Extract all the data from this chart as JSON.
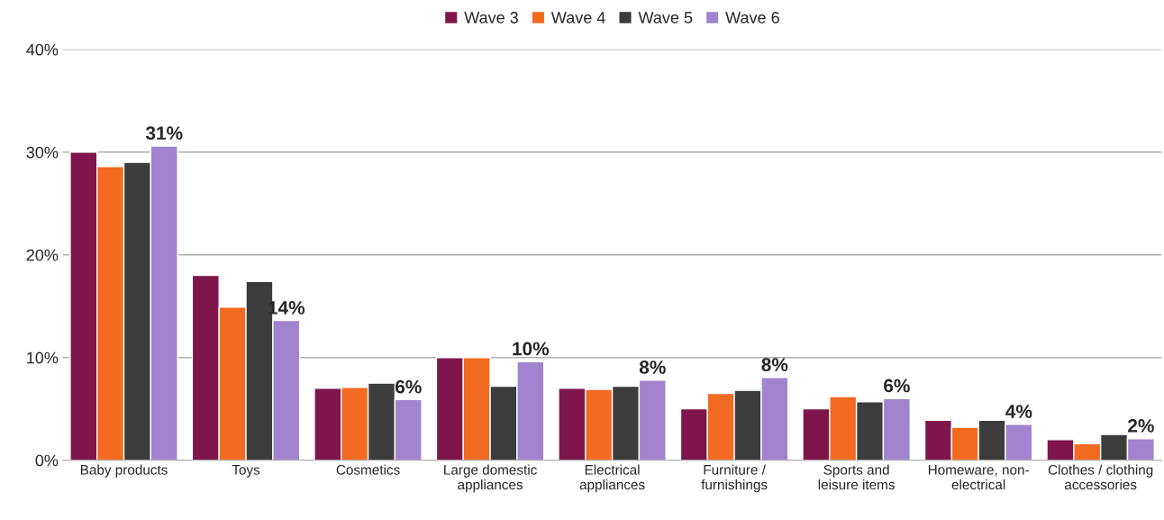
{
  "chart_data": {
    "type": "bar",
    "categories": [
      "Baby products",
      "Toys",
      "Cosmetics",
      "Large domestic\nappliances",
      "Electrical\nappliances",
      "Furniture /\nfurnishings",
      "Sports and\nleisure items",
      "Homeware, non-\nelectrical",
      "Clothes / clothing\naccessories"
    ],
    "series": [
      {
        "name": "Wave 3",
        "color": "#7f164b",
        "values": [
          30,
          18.0,
          7.0,
          10.0,
          7.0,
          5.0,
          5.0,
          3.9,
          2.0
        ]
      },
      {
        "name": "Wave 4",
        "color": "#f26b21",
        "values": [
          28.6,
          14.9,
          7.1,
          10.0,
          6.9,
          6.5,
          6.2,
          3.2,
          1.6
        ]
      },
      {
        "name": "Wave 5",
        "color": "#3c3c3c",
        "values": [
          29.0,
          17.4,
          7.5,
          7.2,
          7.2,
          6.8,
          5.7,
          3.9,
          2.5
        ]
      },
      {
        "name": "Wave 6",
        "color": "#a084cf",
        "values": [
          30.6,
          13.6,
          5.9,
          9.6,
          7.8,
          8.05,
          6.0,
          3.5,
          2.1
        ],
        "value_labels": [
          "31%",
          "14%",
          "6%",
          "10%",
          "8%",
          "8%",
          "6%",
          "4%",
          "2%"
        ]
      }
    ],
    "ylim": [
      0,
      40
    ],
    "yticks": [
      {
        "value": 0,
        "label": "0%"
      },
      {
        "value": 10,
        "label": "10%"
      },
      {
        "value": 20,
        "label": "20%"
      },
      {
        "value": 30,
        "label": "30%"
      },
      {
        "value": 40,
        "label": "40%"
      }
    ],
    "grid": "y",
    "legend": "top"
  }
}
